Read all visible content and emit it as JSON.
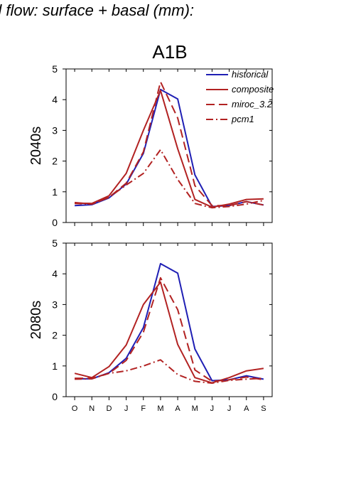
{
  "figure": {
    "header": "d flow: surface + basal (mm):",
    "scenario": "A1B"
  },
  "chart_data": [
    {
      "type": "line",
      "panel_label": "2040s",
      "xticks": [
        "O",
        "N",
        "D",
        "J",
        "F",
        "M",
        "A",
        "M",
        "J",
        "J",
        "A",
        "S"
      ],
      "ylim": [
        0,
        5
      ],
      "yticks": [
        0,
        1,
        2,
        3,
        4,
        5
      ],
      "grid": false,
      "legend_position": "top-right",
      "series": [
        {
          "name": "historical",
          "color": "#1f1fb4",
          "dash": "solid",
          "values": [
            0.55,
            0.58,
            0.8,
            1.25,
            2.25,
            4.33,
            4.02,
            1.55,
            0.52,
            0.55,
            0.68,
            0.57
          ]
        },
        {
          "name": "composite",
          "color": "#b22222",
          "dash": "solid",
          "values": [
            0.63,
            0.62,
            0.87,
            1.6,
            3.0,
            4.3,
            2.4,
            0.75,
            0.5,
            0.6,
            0.75,
            0.77
          ]
        },
        {
          "name": "miroc_3.2",
          "color": "#b22222",
          "dash": "dash",
          "values": [
            0.65,
            0.6,
            0.82,
            1.28,
            2.3,
            4.58,
            3.4,
            1.2,
            0.55,
            0.55,
            0.68,
            0.57
          ]
        },
        {
          "name": "pcm1",
          "color": "#b22222",
          "dash": "dashdot",
          "values": [
            0.62,
            0.6,
            0.82,
            1.22,
            1.6,
            2.37,
            1.4,
            0.62,
            0.48,
            0.52,
            0.6,
            0.72
          ]
        }
      ]
    },
    {
      "type": "line",
      "panel_label": "2080s",
      "xticks": [
        "O",
        "N",
        "D",
        "J",
        "F",
        "M",
        "A",
        "M",
        "J",
        "J",
        "A",
        "S"
      ],
      "ylim": [
        0,
        5
      ],
      "yticks": [
        0,
        1,
        2,
        3,
        4,
        5
      ],
      "grid": false,
      "series": [
        {
          "name": "historical",
          "color": "#1f1fb4",
          "dash": "solid",
          "values": [
            0.58,
            0.58,
            0.78,
            1.25,
            2.25,
            4.33,
            4.02,
            1.55,
            0.52,
            0.55,
            0.68,
            0.57
          ]
        },
        {
          "name": "composite",
          "color": "#b22222",
          "dash": "solid",
          "values": [
            0.76,
            0.62,
            0.98,
            1.68,
            3.0,
            3.73,
            1.7,
            0.62,
            0.45,
            0.62,
            0.84,
            0.92
          ]
        },
        {
          "name": "miroc_3.2",
          "color": "#b22222",
          "dash": "dash",
          "values": [
            0.6,
            0.6,
            0.76,
            1.18,
            2.1,
            3.87,
            2.83,
            0.87,
            0.5,
            0.55,
            0.64,
            0.55
          ]
        },
        {
          "name": "pcm1",
          "color": "#b22222",
          "dash": "dashdot",
          "values": [
            0.57,
            0.58,
            0.76,
            0.84,
            1.0,
            1.2,
            0.72,
            0.5,
            0.44,
            0.53,
            0.57,
            0.6
          ]
        }
      ]
    }
  ]
}
